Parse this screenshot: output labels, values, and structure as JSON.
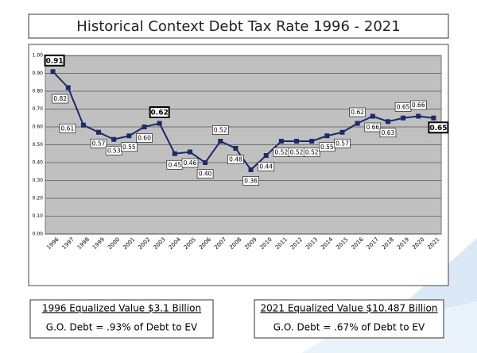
{
  "chart_data": {
    "type": "line",
    "title": "Historical Context Debt Tax Rate 1996 - 2021",
    "categories": [
      "1996",
      "1997",
      "1998",
      "1999",
      "2000",
      "2001",
      "2002",
      "2003",
      "2004",
      "2005",
      "2006",
      "2007",
      "2008",
      "2009",
      "2010",
      "2011",
      "2012",
      "2013",
      "2014",
      "2015",
      "2016",
      "2017",
      "2018",
      "2019",
      "2020",
      "2021"
    ],
    "values": [
      0.91,
      0.82,
      0.61,
      0.57,
      0.53,
      0.55,
      0.6,
      0.62,
      0.45,
      0.46,
      0.4,
      0.52,
      0.48,
      0.36,
      0.44,
      0.52,
      0.52,
      0.52,
      0.55,
      0.57,
      0.62,
      0.66,
      0.63,
      0.65,
      0.66,
      0.65
    ],
    "value_labels": [
      "0.91",
      "0.82",
      "0.61",
      "0.57",
      "0.53",
      "0.55",
      "0.60",
      "0.62",
      "0.45",
      "0.46",
      "0.40",
      "0.52",
      "0.48",
      "0.36",
      "0.44",
      "0.52",
      "0.52",
      "0.52",
      "0.55",
      "0.57",
      "0.62",
      "0.66",
      "0.63",
      "0.65",
      "0.66",
      "0.65"
    ],
    "color": "#1c2a66",
    "ylim": [
      0,
      1
    ],
    "yticks": [
      {
        "value": 0,
        "label": "0.00"
      },
      {
        "value": 0.1,
        "label": "0.10"
      },
      {
        "value": 0.2,
        "label": "0.20"
      },
      {
        "value": 0.3,
        "label": "0.30"
      },
      {
        "value": 0.4,
        "label": "0.40"
      },
      {
        "value": 0.5,
        "label": "0.50"
      },
      {
        "value": 0.6,
        "label": "0.60"
      },
      {
        "value": 0.7,
        "label": "0.70"
      },
      {
        "value": 0.8,
        "label": "0.80"
      },
      {
        "value": 0.9,
        "label": "0.90"
      },
      {
        "value": 1,
        "label": "1.00"
      }
    ],
    "grid": true
  },
  "boxes": [
    {
      "heading": "1996 Equalized Value $3.1 Billion",
      "text": "G.O. Debt = .93% of Debt to EV"
    },
    {
      "heading": "2021 Equalized Value $10.487 Billion",
      "text": "G.O. Debt = .67% of Debt to EV"
    }
  ]
}
